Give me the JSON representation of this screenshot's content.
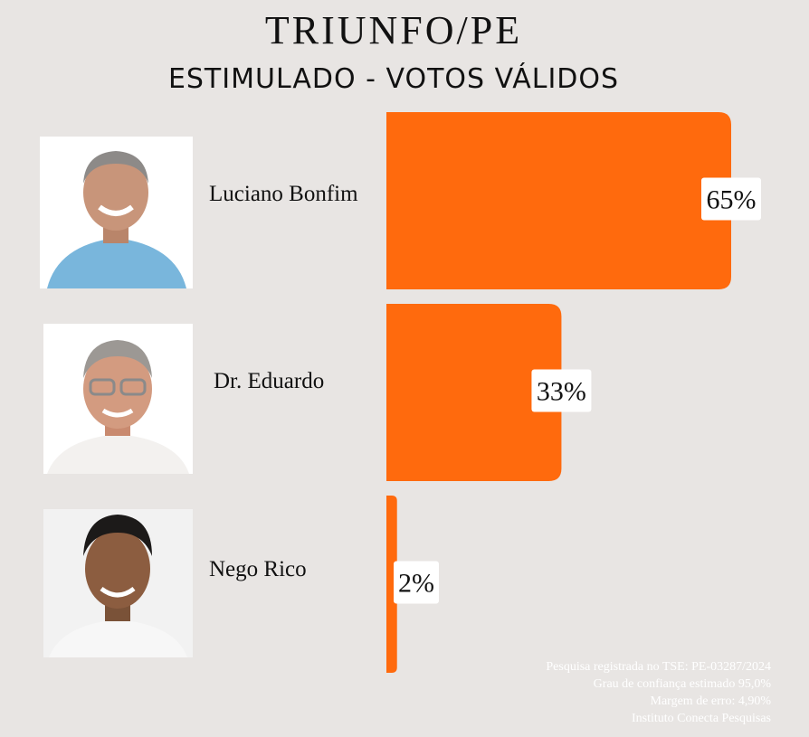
{
  "chart_data": {
    "type": "bar",
    "title": "TRIUNFO/PE",
    "subtitle": "ESTIMULADO - VOTOS VÁLIDOS",
    "categories": [
      "Luciano Bonfim",
      "Dr. Eduardo",
      "Nego Rico"
    ],
    "values": [
      65,
      33,
      2
    ],
    "value_labels": [
      "65%",
      "33%",
      "2%"
    ],
    "orientation": "horizontal",
    "xlim": [
      0,
      65
    ],
    "bar_color": "#ff6a0d",
    "label_box_color": "#ffffff",
    "grid": false,
    "legend": "none"
  },
  "candidates": [
    {
      "name": "Luciano Bonfim",
      "photo": "candidate-portrait",
      "shirt_color": "#79b6dc"
    },
    {
      "name": "Dr. Eduardo",
      "photo": "candidate-portrait",
      "shirt_color": "#f3f1ef"
    },
    {
      "name": "Nego Rico",
      "photo": "candidate-portrait",
      "shirt_color": "#f7f7f7"
    }
  ],
  "footnotes": [
    "Pesquisa registrada no TSE: PE-03287/2024",
    "Grau de confiança estimado 95,0%",
    "Margem de erro: 4,90%",
    "Instituto Conecta Pesquisas"
  ]
}
